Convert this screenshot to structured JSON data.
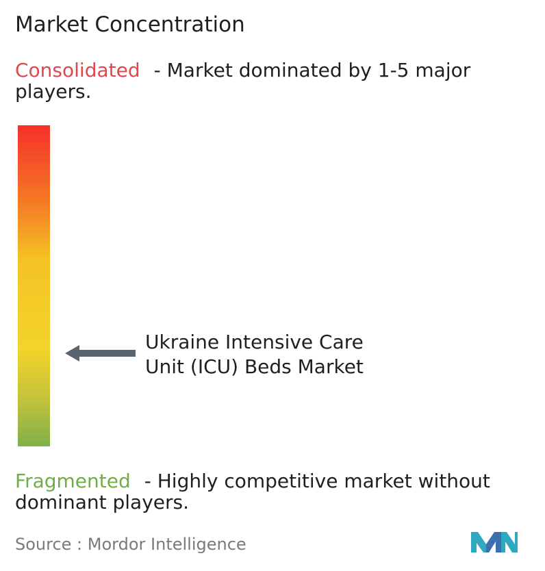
{
  "title": "Market Concentration",
  "legend": {
    "consolidated_term": "Consolidated",
    "consolidated_desc": "- Market dominated by 1-5 major players.",
    "fragmented_term": "Fragmented",
    "fragmented_desc": "- Highly competitive market without dominant players."
  },
  "marker": {
    "label": "Ukraine Intensive Care Unit (ICU) Beds Market"
  },
  "source": "Source :  Mordor Intelligence",
  "logo": {
    "icon": "mordor-intelligence-logo-icon"
  },
  "colors": {
    "consolidated": "#e0474c",
    "fragmented": "#6fae45",
    "arrow": "#5a6470",
    "logo_teal": "#2fa8c2",
    "logo_blue": "#3a6fb0"
  },
  "chart_data": {
    "type": "bar",
    "scale_top": "Consolidated",
    "scale_bottom": "Fragmented",
    "marker_label": "Ukraine Intensive Care Unit (ICU) Beds Market",
    "marker_level": 0.29
  }
}
